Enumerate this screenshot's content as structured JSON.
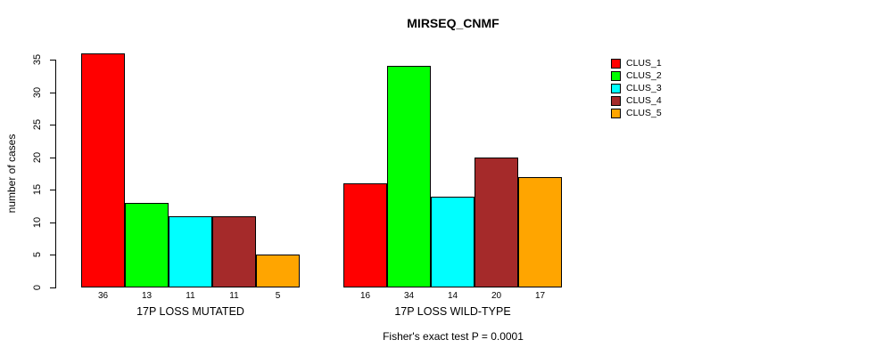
{
  "chart_data": {
    "type": "bar",
    "title": "MIRSEQ_CNMF",
    "ylabel": "number of cases",
    "ylim": [
      0,
      35
    ],
    "yticks": [
      0,
      5,
      10,
      15,
      20,
      25,
      30,
      35
    ],
    "grid": false,
    "legend_position": "top-right",
    "categories": [
      "17P LOSS MUTATED",
      "17P LOSS WILD-TYPE"
    ],
    "series": [
      {
        "name": "CLUS_1",
        "color": "#FF0000",
        "values": [
          36,
          16
        ]
      },
      {
        "name": "CLUS_2",
        "color": "#00FF00",
        "values": [
          13,
          34
        ]
      },
      {
        "name": "CLUS_3",
        "color": "#00FFFF",
        "values": [
          11,
          14
        ]
      },
      {
        "name": "CLUS_4",
        "color": "#A52A2A",
        "values": [
          11,
          20
        ]
      },
      {
        "name": "CLUS_5",
        "color": "#FFA500",
        "values": [
          5,
          17
        ]
      }
    ],
    "bar_value_labels": [
      [
        36,
        13,
        11,
        11,
        5
      ],
      [
        16,
        34,
        14,
        20,
        17
      ]
    ],
    "annotation": "Fisher's exact test P = 0.0001"
  }
}
